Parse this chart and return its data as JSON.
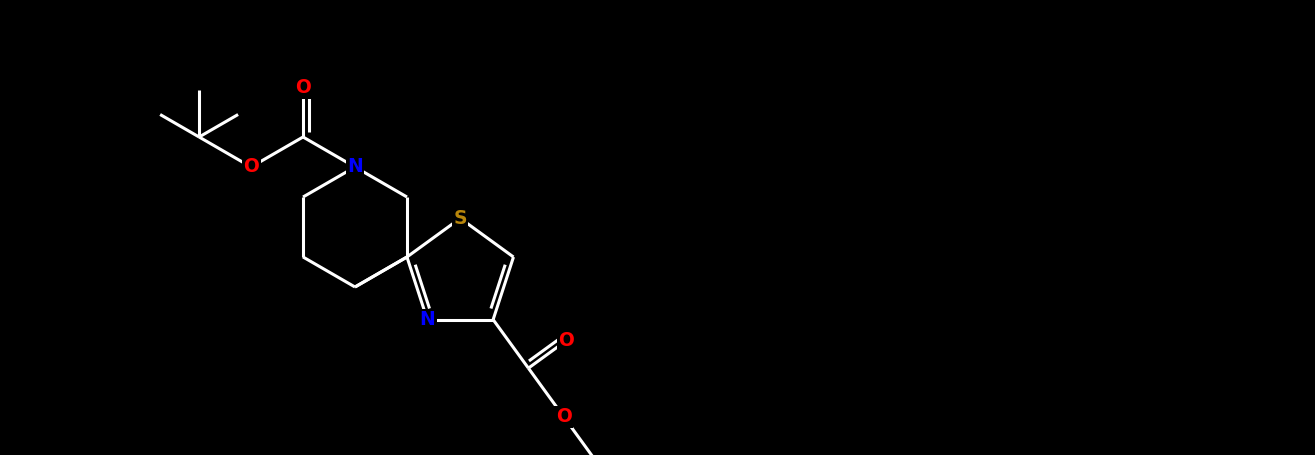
{
  "bg_color": "#000000",
  "bond_color": "#ffffff",
  "bond_width": 2.2,
  "dbo": 0.055,
  "atom_colors": {
    "N": "#0000FF",
    "O": "#FF0000",
    "S": "#B8860B"
  },
  "font_size": 13.5,
  "figsize": [
    13.15,
    4.55
  ],
  "dpi": 100,
  "xlim": [
    0,
    13.15
  ],
  "ylim": [
    0,
    4.55
  ]
}
